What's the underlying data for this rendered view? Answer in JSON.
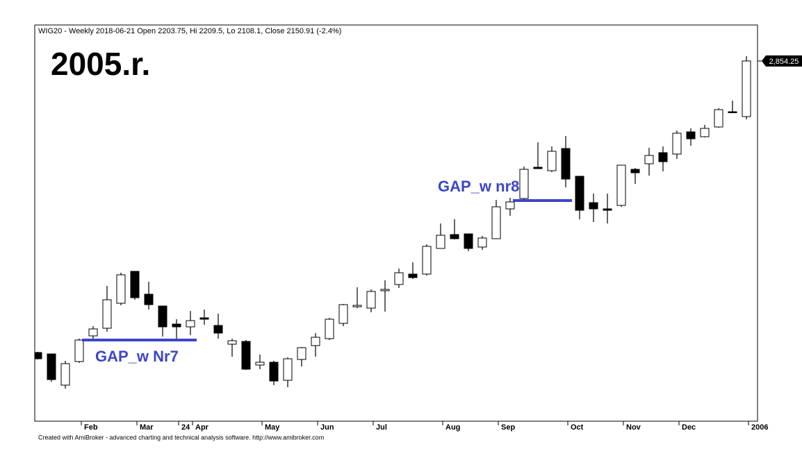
{
  "header": "WIG20 - Weekly 2018-06-21 Open 2203.75, Hi 2209.5, Lo 2108.1, Close 2150.91 (-2.4%)",
  "footer": "Created with AmiBroker - advanced charting and technical analysis software. http://www.amibroker.com",
  "chart_data": {
    "type": "candlestick",
    "title": "2005.r.",
    "categories": [
      null,
      null,
      null,
      "Feb",
      null,
      null,
      null,
      "Mar",
      null,
      null,
      "24",
      "Apr",
      null,
      null,
      null,
      null,
      "May",
      null,
      null,
      null,
      "Jun",
      null,
      null,
      null,
      "Jul",
      null,
      null,
      null,
      null,
      "Aug",
      null,
      null,
      null,
      "Sep",
      null,
      null,
      null,
      null,
      "Oct",
      null,
      null,
      null,
      "Nov",
      null,
      null,
      null,
      "Dec",
      null,
      null,
      null,
      null,
      "2006"
    ],
    "open": [
      2014,
      2010,
      1920,
      1988,
      2062,
      2084,
      2156,
      2248,
      2182,
      2148,
      2096,
      2088,
      2114,
      2092,
      2038,
      2046,
      1978,
      1986,
      1934,
      1994,
      2034,
      2054,
      2098,
      2146,
      2142,
      2192,
      2210,
      2240,
      2240,
      2314,
      2354,
      2356,
      2318,
      2342,
      2428,
      2458,
      2548,
      2538,
      2602,
      2522,
      2446,
      2428,
      2438,
      2542,
      2558,
      2590,
      2586,
      2650,
      2636,
      2664,
      2708,
      2694
    ],
    "high": [
      2016,
      2010,
      1990,
      2054,
      2090,
      2206,
      2244,
      2248,
      2218,
      2148,
      2110,
      2134,
      2138,
      2126,
      2054,
      2050,
      2008,
      1990,
      2000,
      2030,
      2070,
      2114,
      2154,
      2202,
      2196,
      2222,
      2256,
      2274,
      2326,
      2386,
      2398,
      2356,
      2350,
      2454,
      2460,
      2550,
      2620,
      2608,
      2638,
      2522,
      2472,
      2472,
      2554,
      2546,
      2604,
      2608,
      2654,
      2660,
      2670,
      2718,
      2740,
      2868
    ],
    "low": [
      1994,
      1930,
      1910,
      1984,
      2050,
      2074,
      2150,
      2166,
      2138,
      2060,
      2054,
      2064,
      2094,
      2054,
      2002,
      1964,
      1966,
      1920,
      1914,
      1974,
      2002,
      2050,
      2090,
      2142,
      2130,
      2132,
      2200,
      2226,
      2236,
      2314,
      2340,
      2306,
      2310,
      2342,
      2408,
      2454,
      2544,
      2534,
      2490,
      2398,
      2390,
      2386,
      2434,
      2500,
      2524,
      2536,
      2572,
      2610,
      2634,
      2662,
      2704,
      2686
    ],
    "close": [
      1996,
      1936,
      1982,
      2050,
      2082,
      2166,
      2238,
      2172,
      2152,
      2088,
      2088,
      2106,
      2110,
      2070,
      2048,
      1966,
      1986,
      1932,
      1996,
      2028,
      2058,
      2110,
      2152,
      2150,
      2190,
      2196,
      2244,
      2230,
      2320,
      2352,
      2342,
      2314,
      2344,
      2434,
      2448,
      2542,
      2544,
      2594,
      2514,
      2424,
      2428,
      2424,
      2554,
      2532,
      2582,
      2564,
      2646,
      2630,
      2660,
      2714,
      2706,
      2854.25
    ],
    "up_color": "#ffffff",
    "down_color": "#000000",
    "ylim": [
      1816,
      2958
    ],
    "yticks": [
      {
        "value": 2854.25,
        "label": "2,854.25"
      }
    ],
    "annotations": [
      {
        "text": "GAP_w Nr7",
        "value": 2050,
        "x": [
          3,
          11
        ],
        "color": "#3c46c8"
      },
      {
        "text": "GAP_w nr8",
        "value": 2452,
        "x": [
          34,
          38
        ],
        "color": "#3c46c8"
      }
    ]
  }
}
